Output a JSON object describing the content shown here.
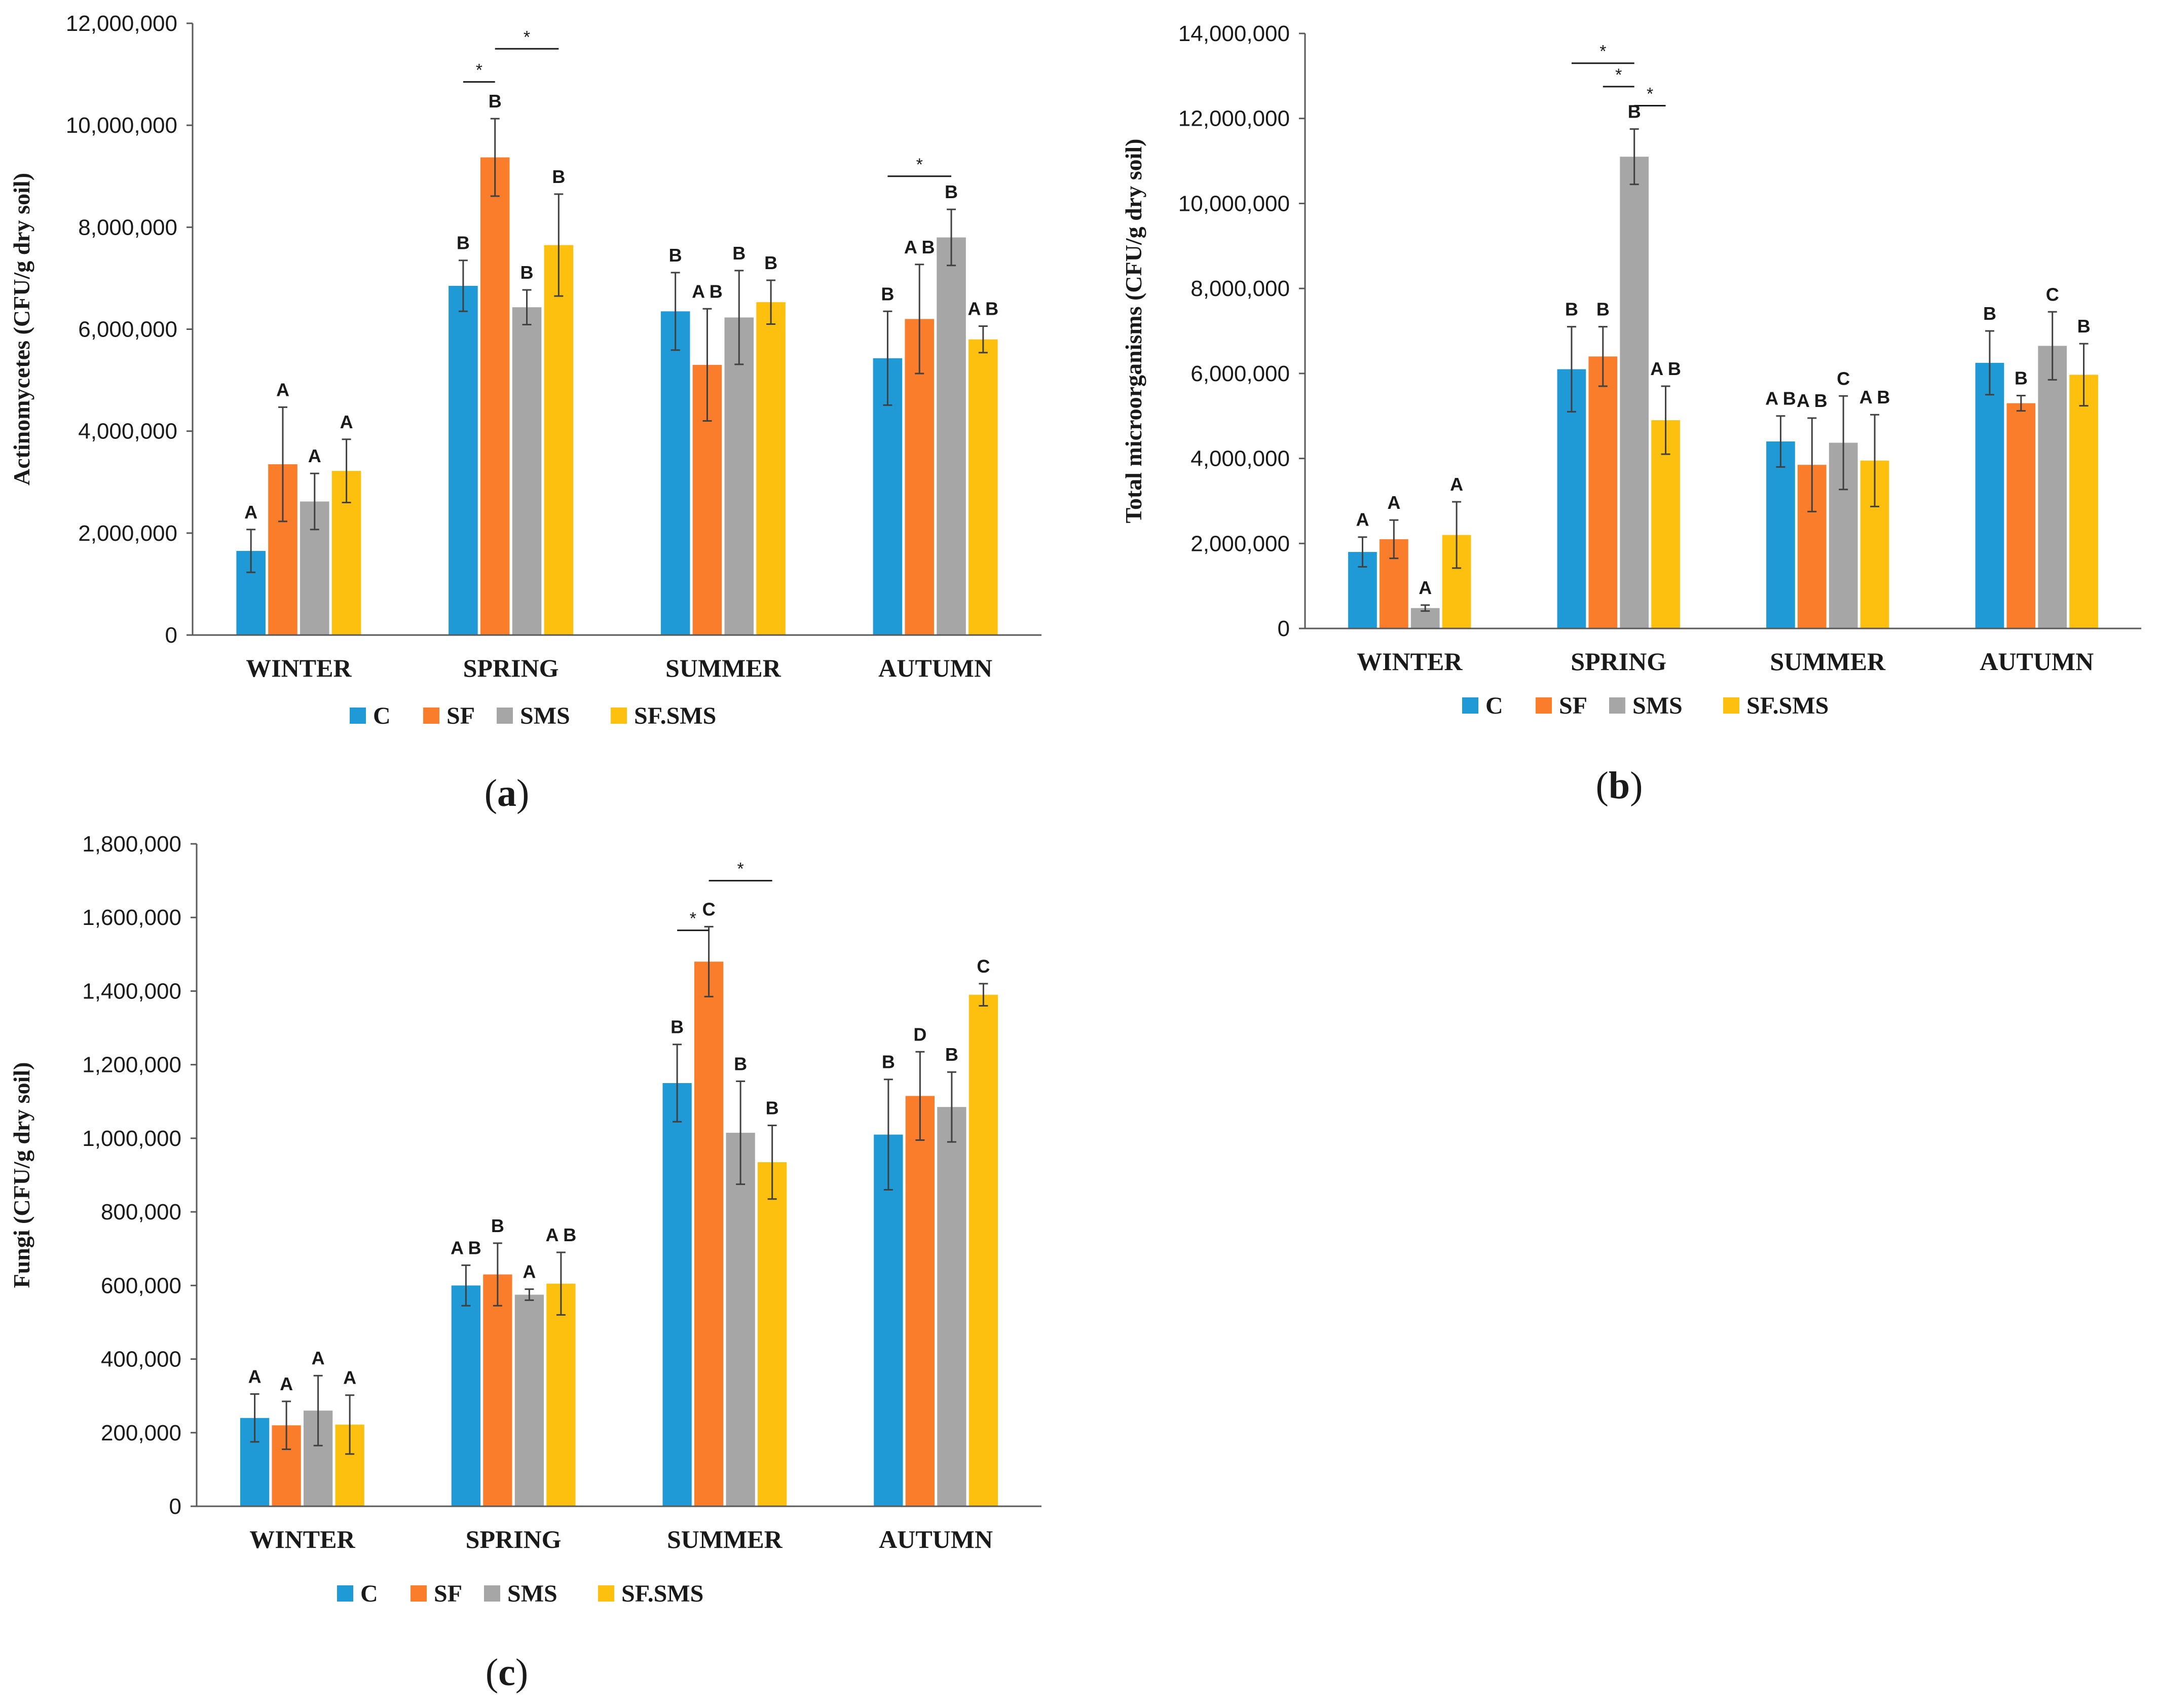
{
  "series_names": [
    "C",
    "SF",
    "SMS",
    "SF.SMS"
  ],
  "colors": {
    "C": "#1f9ad6",
    "SF": "#f97d2a",
    "SMS": "#a6a6a6",
    "SF.SMS": "#fdc00f",
    "axis": "#595959",
    "error_bar": "#404040"
  },
  "chart_data": [
    {
      "panel": "a",
      "panel_label": {
        "open": "(",
        "letter": "a",
        "close": ")"
      },
      "type": "bar",
      "ylabel": "Actinomycetes (CFU/g dry soil)",
      "ylim": [
        0,
        12000000
      ],
      "yticks": [
        0,
        2000000,
        4000000,
        6000000,
        8000000,
        10000000,
        12000000
      ],
      "ytick_labels": [
        "0",
        "2,000,000",
        "4,000,000",
        "6,000,000",
        "8,000,000",
        "10,000,000",
        "12,000,000"
      ],
      "categories": [
        "WINTER",
        "SPRING",
        "SUMMER",
        "AUTUMN"
      ],
      "series": [
        {
          "name": "C",
          "values": [
            1650000,
            6850000,
            6350000,
            5430000
          ],
          "errors": [
            420000,
            500000,
            760000,
            920000
          ],
          "letters": [
            "A",
            "B",
            "B",
            "B"
          ]
        },
        {
          "name": "SF",
          "values": [
            3350000,
            9370000,
            5300000,
            6200000
          ],
          "errors": [
            1120000,
            760000,
            1100000,
            1070000
          ],
          "letters": [
            "A",
            "B",
            "A B",
            "A B"
          ]
        },
        {
          "name": "SMS",
          "values": [
            2620000,
            6430000,
            6230000,
            7800000
          ],
          "errors": [
            550000,
            340000,
            920000,
            550000
          ],
          "letters": [
            "A",
            "B",
            "B",
            "B"
          ]
        },
        {
          "name": "SF.SMS",
          "values": [
            3220000,
            7650000,
            6530000,
            5800000
          ],
          "errors": [
            620000,
            1000000,
            430000,
            260000
          ],
          "letters": [
            "A",
            "B",
            "B",
            "A B"
          ]
        }
      ],
      "significance": [
        {
          "category": 1,
          "from": 0,
          "to": 1,
          "level": 10850000,
          "label": "*"
        },
        {
          "category": 1,
          "from": 1,
          "to": 3,
          "level": 11500000,
          "label": "*"
        },
        {
          "category": 3,
          "from": 0,
          "to": 2,
          "level": 9000000,
          "label": "*"
        }
      ],
      "legend": [
        "C",
        "SF",
        "SMS",
        "SF.SMS"
      ]
    },
    {
      "panel": "b",
      "panel_label": {
        "open": "(",
        "letter": "b",
        "close": ")"
      },
      "type": "bar",
      "ylabel": "Total microorganisms (CFU/g dry soil)",
      "ylim": [
        0,
        14000000
      ],
      "yticks": [
        0,
        2000000,
        4000000,
        6000000,
        8000000,
        10000000,
        12000000,
        14000000
      ],
      "ytick_labels": [
        "0",
        "2,000,000",
        "4,000,000",
        "6,000,000",
        "8,000,000",
        "10,000,000",
        "12,000,000",
        "14,000,000"
      ],
      "categories": [
        "WINTER",
        "SPRING",
        "SUMMER",
        "AUTUMN"
      ],
      "series": [
        {
          "name": "C",
          "values": [
            1800000,
            6100000,
            4400000,
            6250000
          ],
          "errors": [
            350000,
            1000000,
            600000,
            750000
          ],
          "letters": [
            "A",
            "B",
            "A B",
            "B"
          ]
        },
        {
          "name": "SF",
          "values": [
            2100000,
            6400000,
            3850000,
            5300000
          ],
          "errors": [
            450000,
            700000,
            1100000,
            180000
          ],
          "letters": [
            "A",
            "B",
            "A B",
            "B"
          ]
        },
        {
          "name": "SMS",
          "values": [
            480000,
            11100000,
            4370000,
            6650000
          ],
          "errors": [
            70000,
            650000,
            1100000,
            800000
          ],
          "letters": [
            "A",
            "B",
            "C",
            "C"
          ]
        },
        {
          "name": "SF.SMS",
          "values": [
            2200000,
            4900000,
            3950000,
            5970000
          ],
          "errors": [
            780000,
            800000,
            1080000,
            730000
          ],
          "letters": [
            "A",
            "A B",
            "A B",
            "B"
          ]
        }
      ],
      "significance": [
        {
          "category": 1,
          "from": 0,
          "to": 2,
          "level": 13300000,
          "label": "*"
        },
        {
          "category": 1,
          "from": 1,
          "to": 2,
          "level": 12750000,
          "label": "*"
        },
        {
          "category": 1,
          "from": 2,
          "to": 3,
          "level": 12300000,
          "label": "*"
        }
      ],
      "legend": [
        "C",
        "SF",
        "SMS",
        "SF.SMS"
      ]
    },
    {
      "panel": "c",
      "panel_label": {
        "open": "(",
        "letter": "c",
        "close": ")"
      },
      "type": "bar",
      "ylabel": "Fungi (CFU/g dry soil)",
      "ylim": [
        0,
        1800000
      ],
      "yticks": [
        0,
        200000,
        400000,
        600000,
        800000,
        1000000,
        1200000,
        1400000,
        1600000,
        1800000
      ],
      "ytick_labels": [
        "0",
        "200,000",
        "400,000",
        "600,000",
        "800,000",
        "1,000,000",
        "1,200,000",
        "1,400,000",
        "1,600,000",
        "1,800,000"
      ],
      "categories": [
        "WINTER",
        "SPRING",
        "SUMMER",
        "AUTUMN"
      ],
      "series": [
        {
          "name": "C",
          "values": [
            240000,
            600000,
            1150000,
            1010000
          ],
          "errors": [
            65000,
            55000,
            105000,
            150000
          ],
          "letters": [
            "A",
            "A B",
            "B",
            "B"
          ]
        },
        {
          "name": "SF",
          "values": [
            220000,
            630000,
            1480000,
            1115000
          ],
          "errors": [
            65000,
            85000,
            95000,
            120000
          ],
          "letters": [
            "A",
            "B",
            "C",
            "D"
          ]
        },
        {
          "name": "SMS",
          "values": [
            260000,
            575000,
            1015000,
            1085000
          ],
          "errors": [
            95000,
            15000,
            140000,
            95000
          ],
          "letters": [
            "A",
            "A",
            "B",
            "B"
          ]
        },
        {
          "name": "SF.SMS",
          "values": [
            222000,
            605000,
            935000,
            1390000
          ],
          "errors": [
            80000,
            85000,
            100000,
            30000
          ],
          "letters": [
            "A",
            "A B",
            "B",
            "C"
          ]
        }
      ],
      "significance": [
        {
          "category": 2,
          "from": 1,
          "to": 3,
          "level": 1700000,
          "label": "*"
        },
        {
          "category": 2,
          "from": 0,
          "to": 1,
          "level": 1565000,
          "label": "*"
        }
      ],
      "legend": [
        "C",
        "SF",
        "SMS",
        "SF.SMS"
      ]
    }
  ]
}
